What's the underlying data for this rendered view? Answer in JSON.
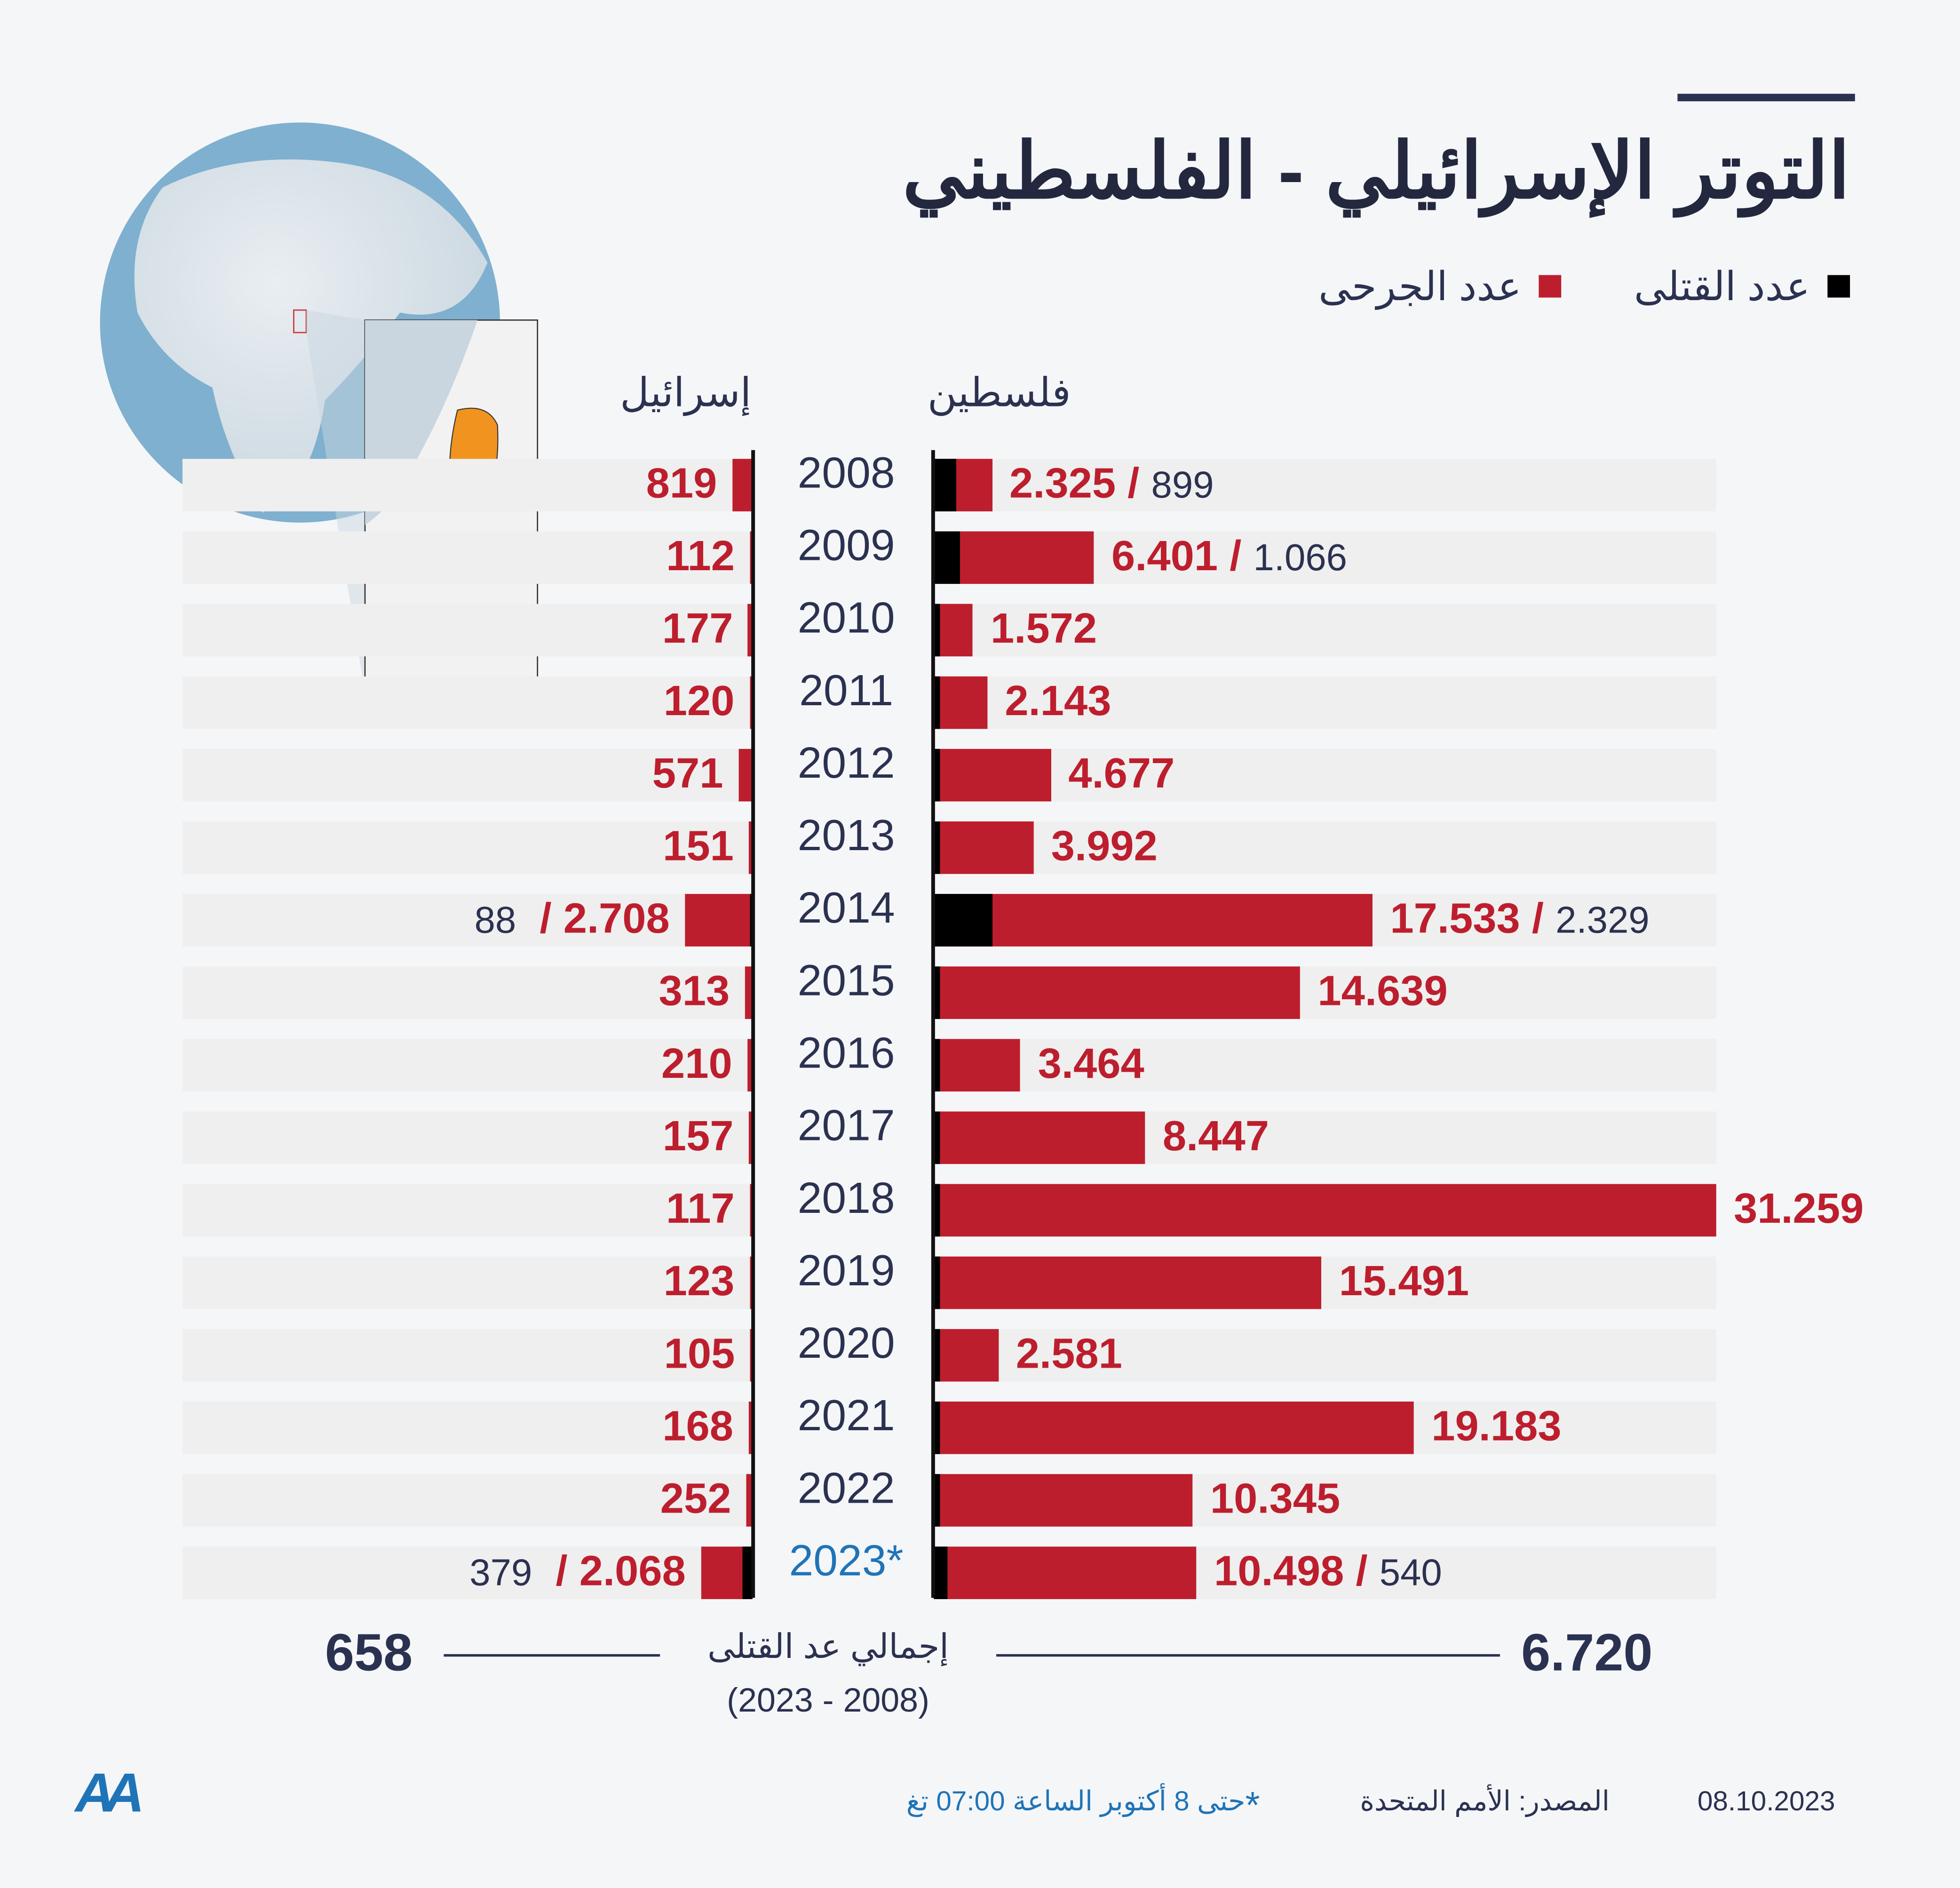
{
  "title": "التوتر الإسرائيلي - الفلسطيني",
  "legend": {
    "killed": "عدد القتلى",
    "injured": "عدد الجرحى"
  },
  "colors": {
    "killed": "#000000",
    "injured": "#bd1e2d",
    "text": "#2b3150",
    "accent_blue": "#1f74b8",
    "band": "#efefef"
  },
  "columns": {
    "palestine": "فلسطين",
    "israel": "إسرائيل"
  },
  "chart_data": {
    "type": "bar",
    "title": "التوتر الإسرائيلي - الفلسطيني",
    "categories": [
      "2008",
      "2009",
      "2010",
      "2011",
      "2012",
      "2013",
      "2014",
      "2015",
      "2016",
      "2017",
      "2018",
      "2019",
      "2020",
      "2021",
      "2022",
      "2023*"
    ],
    "series": [
      {
        "name": "فلسطين - عدد الجرحى",
        "values": [
          2325,
          6401,
          1572,
          2143,
          4677,
          3992,
          17533,
          14639,
          3464,
          8447,
          31259,
          15491,
          2581,
          19183,
          10345,
          10498
        ],
        "labels": [
          "2.325",
          "6.401",
          "1.572",
          "2.143",
          "4.677",
          "3.992",
          "17.533",
          "14.639",
          "3.464",
          "8.447",
          "31.259",
          "15.491",
          "2.581",
          "19.183",
          "10.345",
          "10.498"
        ]
      },
      {
        "name": "فلسطين - عدد القتلى",
        "values": [
          899,
          1066,
          null,
          null,
          null,
          null,
          2329,
          null,
          null,
          null,
          null,
          null,
          null,
          null,
          null,
          540
        ],
        "labels": [
          "899",
          "1.066",
          null,
          null,
          null,
          null,
          "2.329",
          null,
          null,
          null,
          null,
          null,
          null,
          null,
          null,
          "540"
        ]
      },
      {
        "name": "إسرائيل - عدد الجرحى",
        "values": [
          819,
          112,
          177,
          120,
          571,
          151,
          2708,
          313,
          210,
          157,
          117,
          123,
          105,
          168,
          252,
          2068
        ],
        "labels": [
          "819",
          "112",
          "177",
          "120",
          "571",
          "151",
          "2.708",
          "313",
          "210",
          "157",
          "117",
          "123",
          "105",
          "168",
          "252",
          "2.068"
        ]
      },
      {
        "name": "إسرائيل - عدد القتلى",
        "values": [
          null,
          null,
          null,
          null,
          null,
          null,
          88,
          null,
          null,
          null,
          null,
          null,
          null,
          null,
          null,
          379
        ],
        "labels": [
          null,
          null,
          null,
          null,
          null,
          null,
          "88",
          null,
          null,
          null,
          null,
          null,
          null,
          null,
          null,
          "379"
        ]
      }
    ],
    "xlim": [
      0,
      31259
    ]
  },
  "totals": {
    "label": "إجمالي عد القتلى",
    "period": "(2023 - 2008)",
    "israel": "658",
    "palestine": "6.720"
  },
  "footer": {
    "note_star": "*",
    "note": "حتى 8 أكتوبر الساعة 07:00 تغ",
    "source": "المصدر: الأمم المتحدة",
    "date": "08.10.2023",
    "logo": "AA"
  }
}
